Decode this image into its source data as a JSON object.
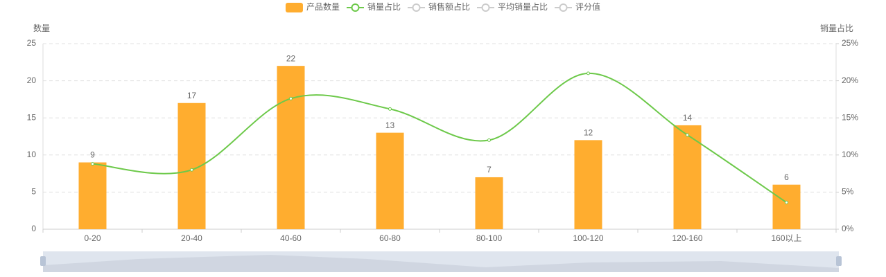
{
  "chart_data": {
    "type": "bar-line",
    "categories": [
      "0-20",
      "20-40",
      "40-60",
      "60-80",
      "80-100",
      "100-120",
      "120-160",
      "160以上"
    ],
    "series": [
      {
        "name": "产品数量",
        "type": "bar",
        "color": "#ffad2f",
        "values": [
          9,
          17,
          22,
          13,
          7,
          12,
          14,
          6
        ]
      },
      {
        "name": "销量占比",
        "type": "line",
        "axis": "y2",
        "smooth": true,
        "color": "#6dc94a",
        "values": [
          8.8,
          8.0,
          17.6,
          16.2,
          12.0,
          21.0,
          12.7,
          3.6
        ]
      }
    ],
    "legend_inactive": [
      "销售额占比",
      "平均销量占比",
      "评分值"
    ],
    "ylabel": "数量",
    "y2label": "销量占比",
    "ylim": [
      0,
      25
    ],
    "yticks": [
      0,
      5,
      10,
      15,
      20,
      25
    ],
    "y2lim": [
      0,
      25
    ],
    "y2ticks": [
      {
        "value": 0,
        "label": "0%"
      },
      {
        "value": 5,
        "label": "5%"
      },
      {
        "value": 10,
        "label": "10%"
      },
      {
        "value": 15,
        "label": "15%"
      },
      {
        "value": 20,
        "label": "20%"
      },
      {
        "value": 25,
        "label": "25%"
      }
    ],
    "grid": true
  }
}
